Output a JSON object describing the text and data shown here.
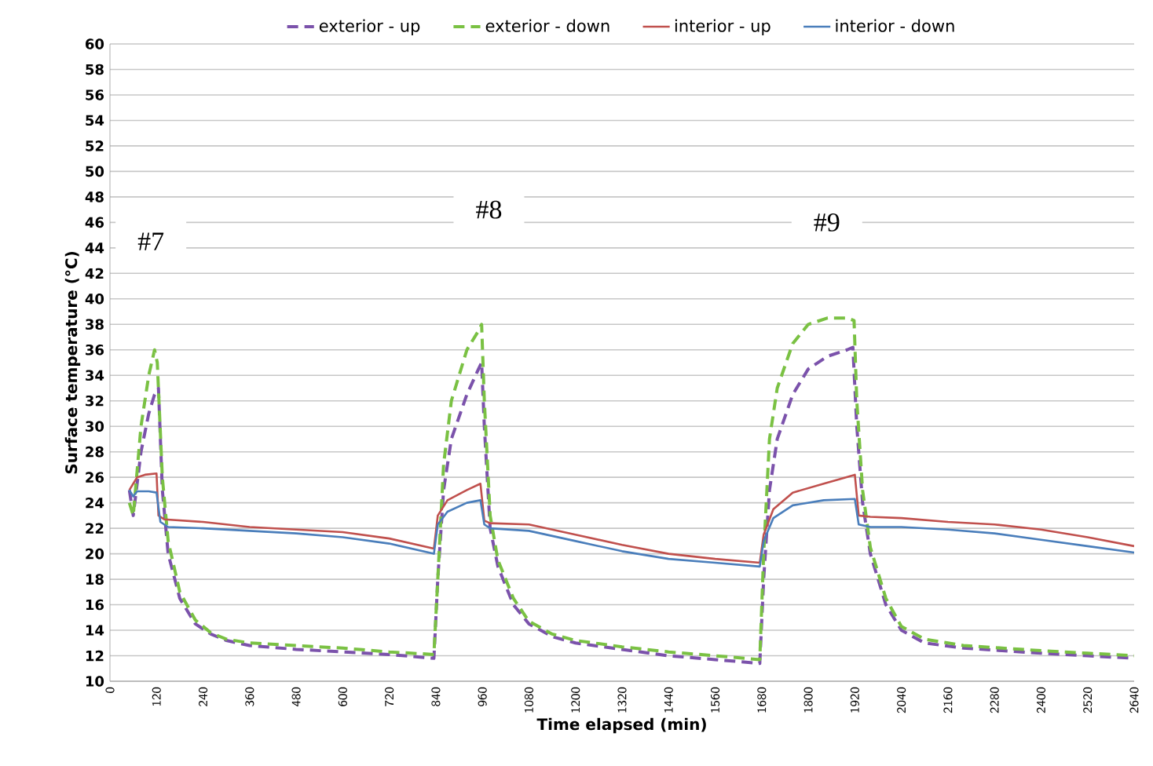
{
  "chart_data": {
    "type": "line",
    "xlabel": "Time elapsed (min)",
    "ylabel": "Surface  temperature (°C)",
    "xlim": [
      0,
      2640
    ],
    "xticks": [
      0,
      120,
      240,
      360,
      480,
      600,
      720,
      840,
      960,
      1080,
      1200,
      1320,
      1440,
      1560,
      1680,
      1800,
      1920,
      2040,
      2160,
      2280,
      2400,
      2520,
      2640
    ],
    "ylim": [
      10,
      60
    ],
    "yticks": [
      10,
      12,
      14,
      16,
      18,
      20,
      22,
      24,
      26,
      28,
      30,
      32,
      34,
      36,
      38,
      40,
      42,
      44,
      46,
      48,
      50,
      52,
      54,
      56,
      58,
      60
    ],
    "grid": "y",
    "legend": "top",
    "marker": "none",
    "annotations": [
      "#7",
      "#8",
      "#9"
    ],
    "series": [
      {
        "name": "exterior - up",
        "color": "#7b52ab",
        "line_style": "dashed",
        "x": [
          50,
          60,
          80,
          100,
          115,
          125,
          135,
          150,
          180,
          220,
          260,
          300,
          360,
          480,
          600,
          720,
          835,
          845,
          860,
          880,
          920,
          950,
          958,
          965,
          980,
          1000,
          1040,
          1080,
          1140,
          1200,
          1320,
          1440,
          1560,
          1675,
          1685,
          1700,
          1720,
          1760,
          1800,
          1850,
          1900,
          1915,
          1925,
          1940,
          1960,
          2000,
          2040,
          2100,
          2200,
          2300,
          2400,
          2520,
          2640
        ],
        "values": [
          25,
          23,
          28,
          31,
          32.5,
          33,
          25,
          20,
          16.5,
          14.5,
          13.7,
          13.2,
          12.8,
          12.5,
          12.3,
          12.1,
          11.8,
          18,
          25,
          29,
          32.5,
          34.5,
          35,
          30,
          22,
          19,
          16,
          14.5,
          13.5,
          13,
          12.5,
          12,
          11.7,
          11.4,
          18,
          25,
          29,
          32.5,
          34.5,
          35.5,
          36,
          36.2,
          30,
          24,
          20,
          16,
          14,
          13,
          12.6,
          12.4,
          12.2,
          12,
          11.8
        ]
      },
      {
        "name": "exterior - down",
        "color": "#7ac143",
        "line_style": "dashed",
        "x": [
          50,
          60,
          80,
          100,
          115,
          122,
          135,
          150,
          180,
          220,
          260,
          300,
          360,
          480,
          600,
          720,
          835,
          845,
          860,
          880,
          920,
          950,
          958,
          965,
          980,
          1000,
          1040,
          1080,
          1140,
          1200,
          1320,
          1440,
          1560,
          1675,
          1685,
          1700,
          1720,
          1760,
          1800,
          1850,
          1900,
          1918,
          1925,
          1940,
          1960,
          2000,
          2040,
          2100,
          2200,
          2300,
          2400,
          2520,
          2640
        ],
        "values": [
          24,
          23,
          30,
          34,
          36,
          35,
          26,
          21,
          17,
          14.8,
          13.8,
          13.3,
          13,
          12.8,
          12.6,
          12.3,
          12.1,
          18,
          27,
          32,
          36,
          37.5,
          38,
          32,
          23,
          19.5,
          16.5,
          14.7,
          13.7,
          13.2,
          12.7,
          12.3,
          12,
          11.7,
          20,
          29,
          33,
          36.5,
          38,
          38.5,
          38.5,
          38.3,
          32,
          25,
          20.5,
          16.5,
          14.3,
          13.3,
          12.8,
          12.6,
          12.4,
          12.2,
          12
        ]
      },
      {
        "name": "interior - up",
        "color": "#c0504d",
        "line_style": "solid",
        "x": [
          50,
          60,
          70,
          90,
          120,
          125,
          140,
          240,
          360,
          480,
          600,
          720,
          835,
          845,
          870,
          920,
          955,
          965,
          980,
          1080,
          1200,
          1320,
          1440,
          1560,
          1675,
          1685,
          1710,
          1760,
          1840,
          1920,
          1930,
          1960,
          2040,
          2160,
          2280,
          2400,
          2520,
          2640
        ],
        "values": [
          25,
          25.5,
          26,
          26.2,
          26.3,
          23,
          22.7,
          22.5,
          22.1,
          21.9,
          21.7,
          21.2,
          20.4,
          23,
          24.2,
          25,
          25.5,
          22.6,
          22.4,
          22.3,
          21.5,
          20.7,
          20,
          19.6,
          19.3,
          21.5,
          23.5,
          24.8,
          25.5,
          26.2,
          23,
          22.9,
          22.8,
          22.5,
          22.3,
          21.9,
          21.3,
          20.6
        ]
      },
      {
        "name": "interior - down",
        "color": "#4a7ebb",
        "line_style": "solid",
        "x": [
          50,
          60,
          70,
          100,
          120,
          130,
          150,
          240,
          360,
          480,
          600,
          720,
          835,
          845,
          870,
          920,
          955,
          965,
          980,
          1080,
          1200,
          1320,
          1440,
          1560,
          1675,
          1685,
          1710,
          1760,
          1840,
          1920,
          1930,
          1960,
          2040,
          2160,
          2280,
          2400,
          2520,
          2640
        ],
        "values": [
          25,
          24.5,
          24.9,
          24.9,
          24.8,
          22.5,
          22.1,
          22,
          21.8,
          21.6,
          21.3,
          20.8,
          20,
          22.3,
          23.3,
          24,
          24.2,
          22.3,
          22,
          21.8,
          21,
          20.2,
          19.6,
          19.3,
          19,
          21,
          22.8,
          23.8,
          24.2,
          24.3,
          22.3,
          22.1,
          22.1,
          21.9,
          21.6,
          21.1,
          20.6,
          20.1
        ]
      }
    ]
  }
}
